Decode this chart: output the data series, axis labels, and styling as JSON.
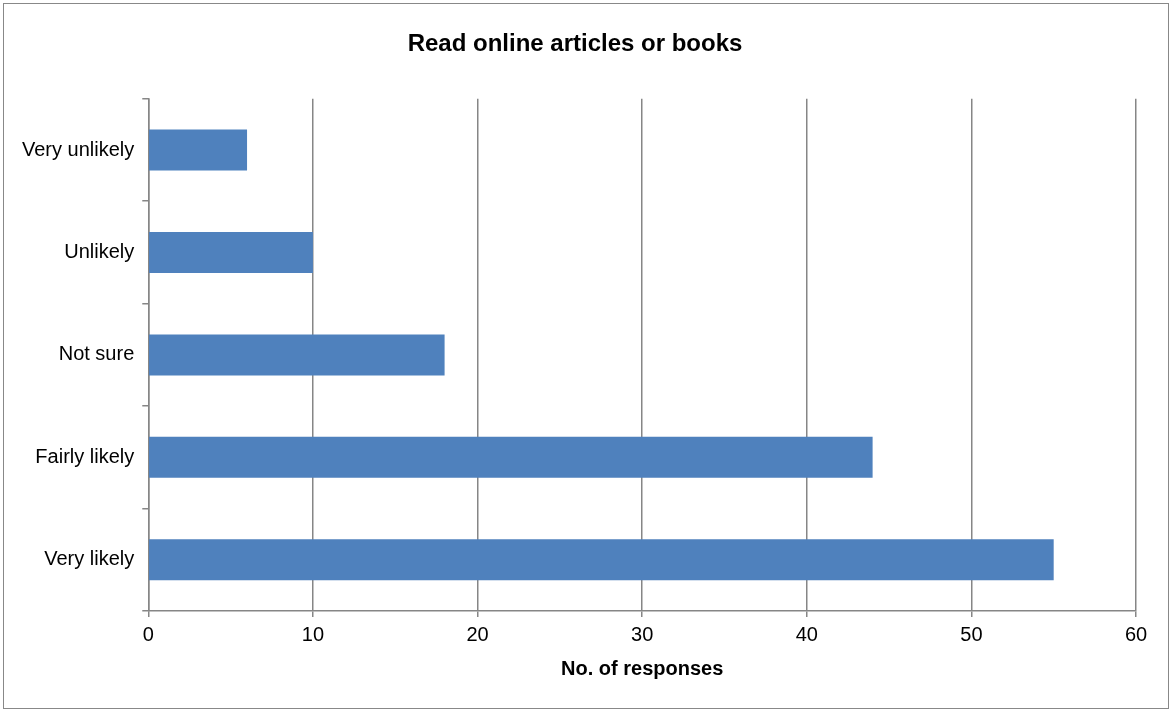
{
  "chart_data": {
    "type": "bar",
    "orientation": "horizontal",
    "title": "Read online articles or books",
    "xlabel": "No. of responses",
    "categories": [
      "Very unlikely",
      "Unlikely",
      "Not sure",
      "Fairly likely",
      "Very likely"
    ],
    "values": [
      6,
      10,
      18,
      44,
      55
    ],
    "color": "#4f81bd",
    "xlim": [
      0,
      60
    ],
    "xticks": [
      0,
      10,
      20,
      30,
      40,
      50,
      60
    ],
    "grid": "x",
    "legend": false
  }
}
